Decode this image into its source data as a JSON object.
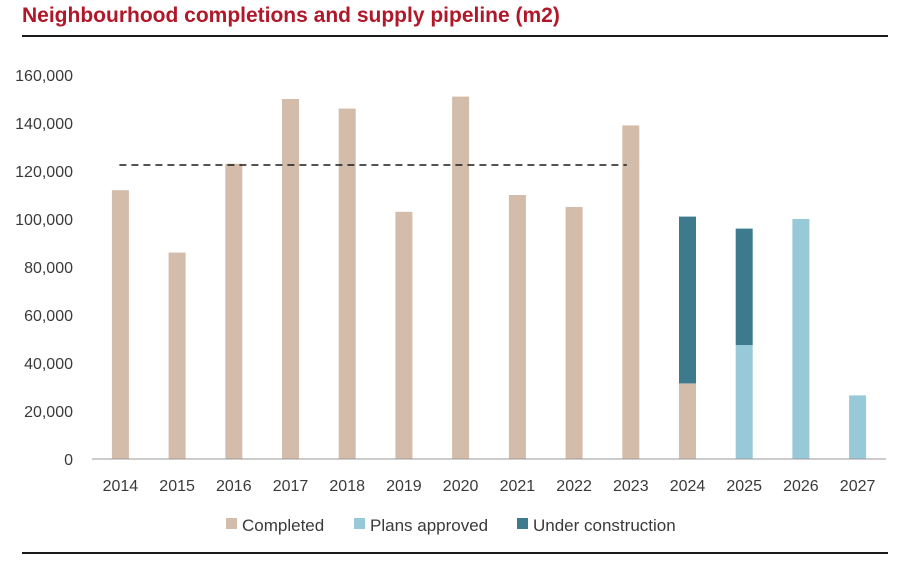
{
  "title": "Neighbourhood completions and supply pipeline (m2)",
  "chart_data": {
    "type": "bar",
    "stacked": true,
    "categories": [
      "2014",
      "2015",
      "2016",
      "2017",
      "2018",
      "2019",
      "2020",
      "2021",
      "2022",
      "2023",
      "2024",
      "2025",
      "2026",
      "2027"
    ],
    "series": [
      {
        "name": "Completed",
        "color": "#d4bcaa",
        "values": [
          112000,
          86000,
          123000,
          150000,
          146000,
          103000,
          151000,
          110000,
          105000,
          139000,
          31500,
          0,
          0,
          0
        ]
      },
      {
        "name": "Plans approved",
        "color": "#97c9d9",
        "values": [
          0,
          0,
          0,
          0,
          0,
          0,
          0,
          0,
          0,
          0,
          0,
          47500,
          100000,
          26500
        ]
      },
      {
        "name": "Under construction",
        "color": "#3e7a8e",
        "values": [
          0,
          0,
          0,
          0,
          0,
          0,
          0,
          0,
          0,
          0,
          69500,
          48500,
          0,
          0
        ]
      }
    ],
    "average_line": {
      "value": 122500,
      "from": "2014",
      "to": "2023",
      "style": "dashed"
    },
    "ylim": [
      0,
      160000
    ],
    "yticks": [
      "0",
      "20,000",
      "40,000",
      "60,000",
      "80,000",
      "100,000",
      "120,000",
      "140,000",
      "160,000"
    ],
    "ytick_values": [
      0,
      20000,
      40000,
      60000,
      80000,
      100000,
      120000,
      140000,
      160000
    ],
    "xlabel": "",
    "ylabel": "",
    "legend_position": "bottom-center",
    "grid": false
  }
}
